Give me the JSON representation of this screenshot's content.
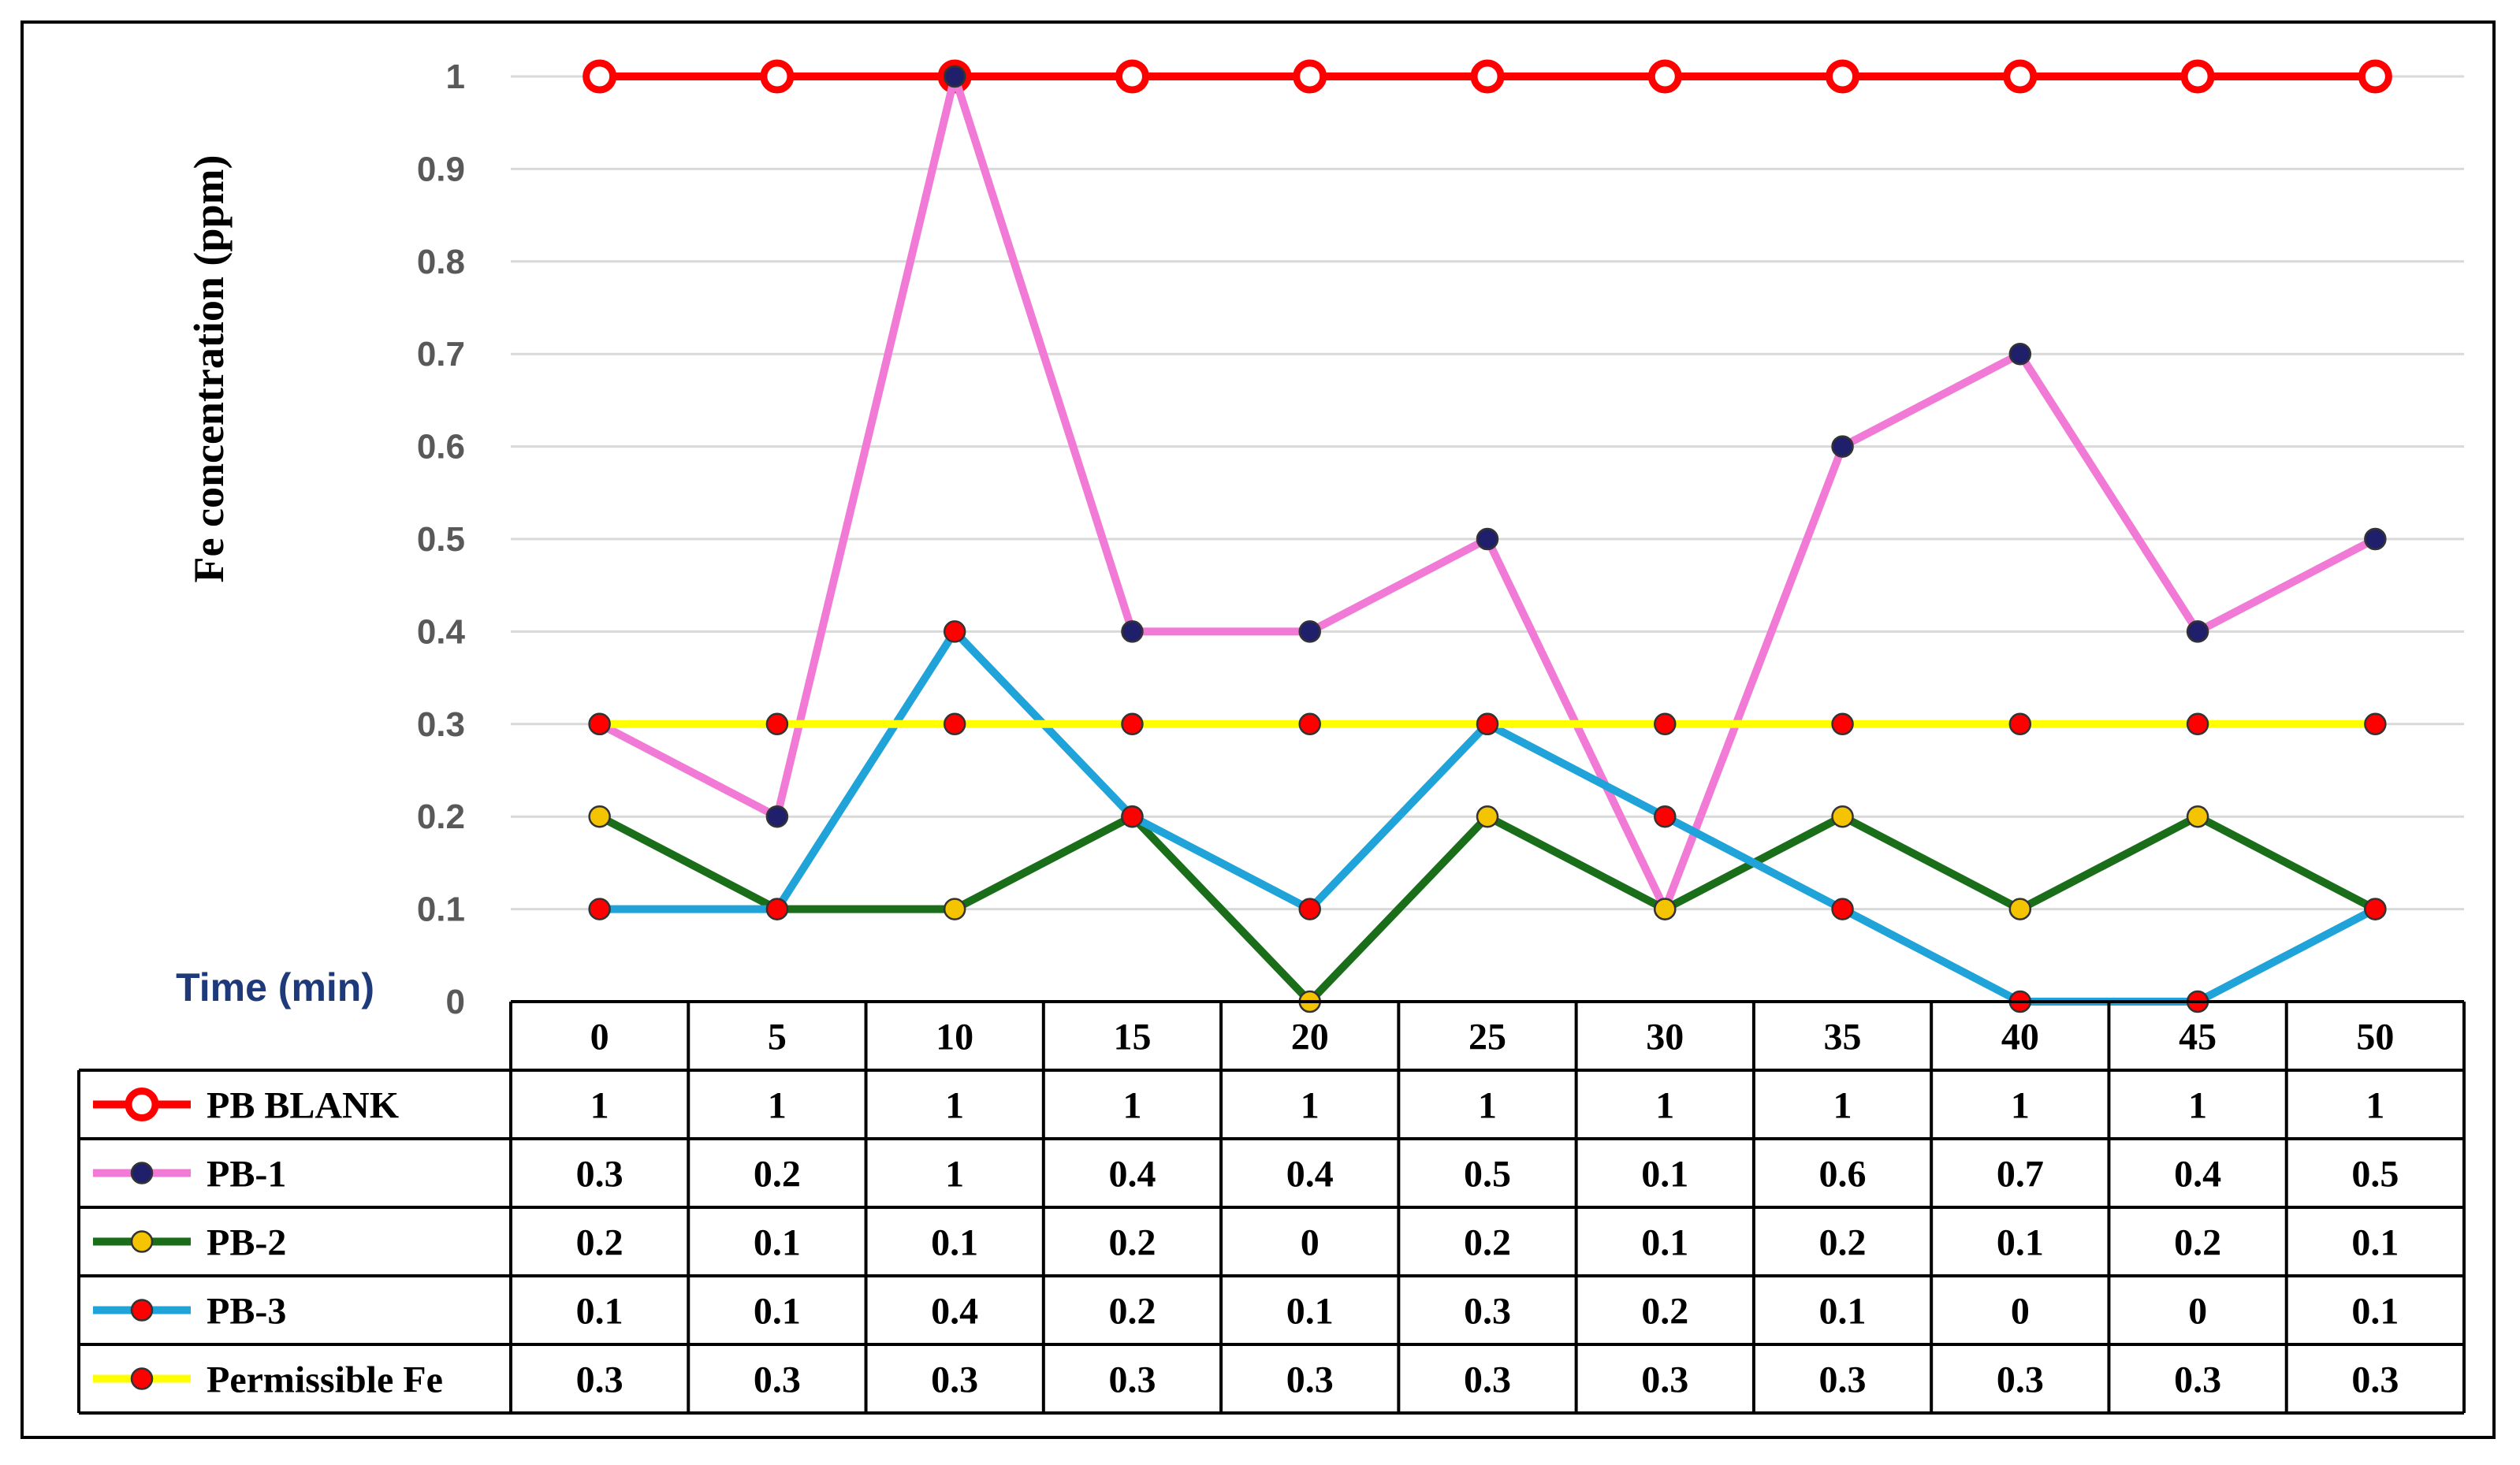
{
  "chart_data": {
    "type": "line",
    "title": "",
    "xlabel": "Time (min)",
    "ylabel": "Fe concentration (ppm)",
    "x": [
      0,
      5,
      10,
      15,
      20,
      25,
      30,
      35,
      40,
      45,
      50
    ],
    "ylim": [
      0,
      1
    ],
    "yticks": [
      "0",
      "0.1",
      "0.2",
      "0.3",
      "0.4",
      "0.5",
      "0.6",
      "0.7",
      "0.8",
      "0.9",
      "1"
    ],
    "grid": true,
    "legend": "data-table",
    "series": [
      {
        "name": "PB BLANK",
        "values": [
          1,
          1,
          1,
          1,
          1,
          1,
          1,
          1,
          1,
          1,
          1
        ],
        "line_color": "#ff0000",
        "marker_fill": "#ffffff",
        "marker_stroke": "#ff0000"
      },
      {
        "name": "PB-1",
        "values": [
          0.3,
          0.2,
          1,
          0.4,
          0.4,
          0.5,
          0.1,
          0.6,
          0.7,
          0.4,
          0.5
        ],
        "line_color": "#f07ad6",
        "marker_fill": "#1f1f6b",
        "marker_stroke": "#f07ad6"
      },
      {
        "name": "PB-2",
        "values": [
          0.2,
          0.1,
          0.1,
          0.2,
          0,
          0.2,
          0.1,
          0.2,
          0.1,
          0.2,
          0.1
        ],
        "line_color": "#1a6e1a",
        "marker_fill": "#f5c400",
        "marker_stroke": "#1a6e1a"
      },
      {
        "name": "PB-3",
        "values": [
          0.1,
          0.1,
          0.4,
          0.2,
          0.1,
          0.3,
          0.2,
          0.1,
          0,
          0,
          0.1
        ],
        "line_color": "#1fa3d9",
        "marker_fill": "#ff0000",
        "marker_stroke": "#1fa3d9"
      },
      {
        "name": "Permissible Fe",
        "values": [
          0.3,
          0.3,
          0.3,
          0.3,
          0.3,
          0.3,
          0.3,
          0.3,
          0.3,
          0.3,
          0.3
        ],
        "line_color": "#ffff00",
        "marker_fill": "#ff0000",
        "marker_stroke": "#ffff00"
      }
    ],
    "table": {
      "header": [
        "0",
        "5",
        "10",
        "15",
        "20",
        "25",
        "30",
        "35",
        "40",
        "45",
        "50"
      ],
      "rows": [
        [
          "1",
          "1",
          "1",
          "1",
          "1",
          "1",
          "1",
          "1",
          "1",
          "1",
          "1"
        ],
        [
          "0.3",
          "0.2",
          "1",
          "0.4",
          "0.4",
          "0.5",
          "0.1",
          "0.6",
          "0.7",
          "0.4",
          "0.5"
        ],
        [
          "0.2",
          "0.1",
          "0.1",
          "0.2",
          "0",
          "0.2",
          "0.1",
          "0.2",
          "0.1",
          "0.2",
          "0.1"
        ],
        [
          "0.1",
          "0.1",
          "0.4",
          "0.2",
          "0.1",
          "0.3",
          "0.2",
          "0.1",
          "0",
          "0",
          "0.1"
        ],
        [
          "0.3",
          "0.3",
          "0.3",
          "0.3",
          "0.3",
          "0.3",
          "0.3",
          "0.3",
          "0.3",
          "0.3",
          "0.3"
        ]
      ]
    }
  }
}
